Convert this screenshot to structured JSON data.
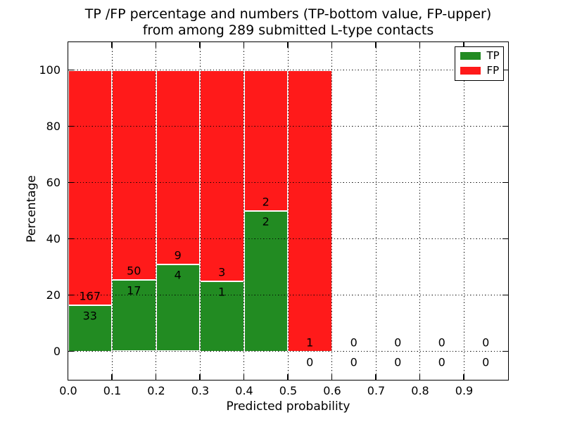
{
  "chart_data": {
    "type": "bar",
    "stacked": true,
    "title": "TP /FP percentage and numbers (TP-bottom value, FP-upper) from among 289 submitted L-type contacts",
    "title_line1": "TP /FP percentage and numbers (TP-bottom value, FP-upper)",
    "title_line2": "from among 289 submitted L-type contacts",
    "total_submitted_contacts": 289,
    "xlabel": "Predicted probability",
    "ylabel": "Percentage",
    "xlim": [
      0.0,
      1.0
    ],
    "ylim": [
      -10,
      110
    ],
    "grid": true,
    "xtick_values": [
      0.0,
      0.1,
      0.2,
      0.3,
      0.4,
      0.5,
      0.6,
      0.7,
      0.8,
      0.9
    ],
    "xtick_labels": [
      "0.0",
      "0.1",
      "0.2",
      "0.3",
      "0.4",
      "0.5",
      "0.6",
      "0.7",
      "0.8",
      "0.9"
    ],
    "ytick_values": [
      0,
      20,
      40,
      60,
      80,
      100
    ],
    "ytick_labels": [
      "0",
      "20",
      "40",
      "60",
      "80",
      "100"
    ],
    "colors": {
      "tp": "#228b22",
      "fp": "#ff1a1a",
      "grid": "#000000",
      "bar_edge": "#ffffff"
    },
    "legend": {
      "position": "upper right",
      "entries": [
        {
          "label": "TP",
          "color": "#228b22"
        },
        {
          "label": "FP",
          "color": "#ff1a1a"
        }
      ]
    },
    "bins": [
      {
        "x0": 0.0,
        "x1": 0.1,
        "tp": 33,
        "fp": 167,
        "tp_pct": 16.5,
        "fp_pct": 83.5
      },
      {
        "x0": 0.1,
        "x1": 0.2,
        "tp": 17,
        "fp": 50,
        "tp_pct": 25.37,
        "fp_pct": 74.63
      },
      {
        "x0": 0.2,
        "x1": 0.3,
        "tp": 4,
        "fp": 9,
        "tp_pct": 30.77,
        "fp_pct": 69.23
      },
      {
        "x0": 0.3,
        "x1": 0.4,
        "tp": 1,
        "fp": 3,
        "tp_pct": 25.0,
        "fp_pct": 75.0
      },
      {
        "x0": 0.4,
        "x1": 0.5,
        "tp": 2,
        "fp": 2,
        "tp_pct": 50.0,
        "fp_pct": 50.0
      },
      {
        "x0": 0.5,
        "x1": 0.6,
        "tp": 0,
        "fp": 1,
        "tp_pct": 0.0,
        "fp_pct": 100.0
      },
      {
        "x0": 0.6,
        "x1": 0.7,
        "tp": 0,
        "fp": 0,
        "tp_pct": 0.0,
        "fp_pct": 0.0
      },
      {
        "x0": 0.7,
        "x1": 0.8,
        "tp": 0,
        "fp": 0,
        "tp_pct": 0.0,
        "fp_pct": 0.0
      },
      {
        "x0": 0.8,
        "x1": 0.9,
        "tp": 0,
        "fp": 0,
        "tp_pct": 0.0,
        "fp_pct": 0.0
      },
      {
        "x0": 0.9,
        "x1": 1.0,
        "tp": 0,
        "fp": 0,
        "tp_pct": 0.0,
        "fp_pct": 0.0
      }
    ]
  }
}
